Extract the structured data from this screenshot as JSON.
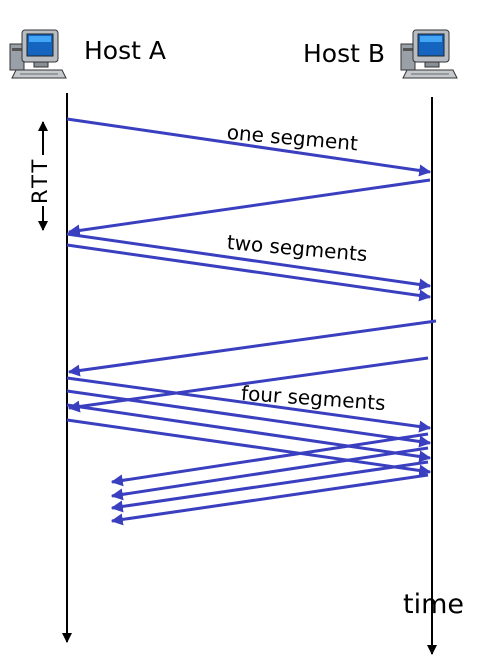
{
  "hosts": {
    "a": "Host A",
    "b": "Host B"
  },
  "rtt_label": "RTT",
  "segment_labels": {
    "one": "one segment",
    "two": "two segments",
    "four": "four segments"
  },
  "time_label": "time",
  "colors": {
    "arrow": "#3a3fbf",
    "timeline": "#000000",
    "text": "#000000"
  },
  "icons": [
    "computer-icon",
    "computer-icon"
  ]
}
